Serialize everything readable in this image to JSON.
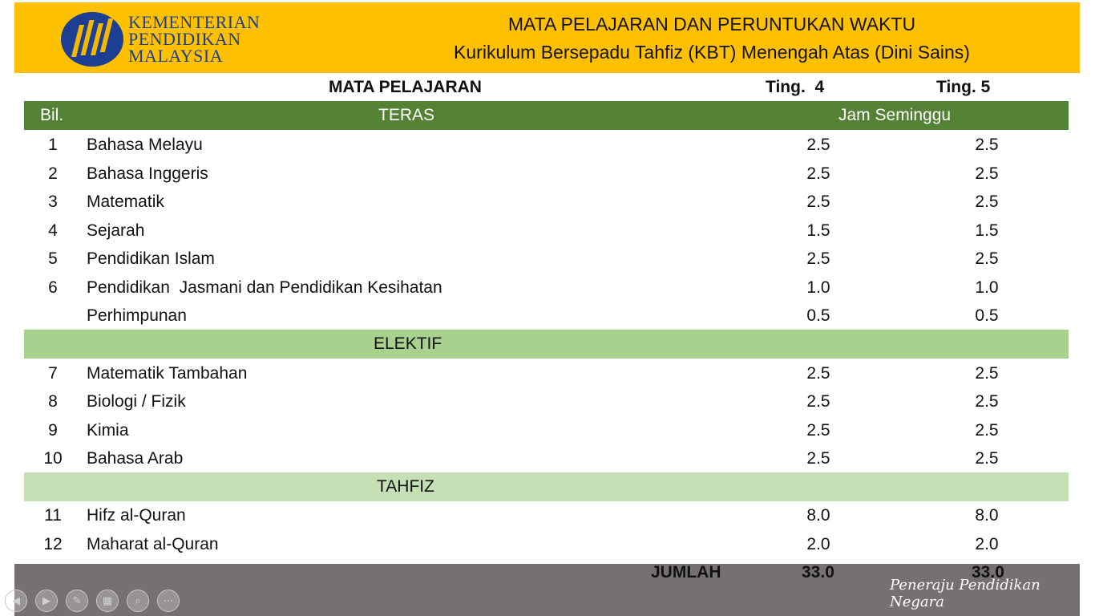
{
  "header": {
    "logo": {
      "line1": "KEMENTERIAN",
      "line2": "PENDIDIKAN",
      "line3": "MALAYSIA"
    },
    "title": "MATA PELAJARAN DAN PERUNTUKAN WAKTU",
    "subtitle": "Kurikulum Bersepadu Tahfiz (KBT) Menengah Atas (Dini Sains)"
  },
  "table": {
    "col_subject": "MATA PELAJARAN",
    "col_t4": "Ting.  4",
    "col_t5": "Ting. 5",
    "bil_label": "Bil.",
    "jam_label": "Jam Seminggu",
    "sections": {
      "teras": "TERAS",
      "elektif": "ELEKTIF",
      "tahfiz": "TAHFIZ"
    },
    "teras_rows": [
      {
        "bil": "1",
        "subject": "Bahasa Melayu",
        "t4": "2.5",
        "t5": "2.5"
      },
      {
        "bil": "2",
        "subject": "Bahasa Inggeris",
        "t4": "2.5",
        "t5": "2.5"
      },
      {
        "bil": "3",
        "subject": "Matematik",
        "t4": "2.5",
        "t5": "2.5"
      },
      {
        "bil": "4",
        "subject": "Sejarah",
        "t4": "1.5",
        "t5": "1.5"
      },
      {
        "bil": "5",
        "subject": "Pendidikan Islam",
        "t4": "2.5",
        "t5": "2.5"
      },
      {
        "bil": "6",
        "subject": "Pendidikan  Jasmani dan Pendidikan Kesihatan",
        "t4": "1.0",
        "t5": "1.0"
      },
      {
        "bil": "",
        "subject": "Perhimpunan",
        "t4": "0.5",
        "t5": "0.5"
      }
    ],
    "elektif_rows": [
      {
        "bil": "7",
        "subject": "Matematik Tambahan",
        "t4": "2.5",
        "t5": "2.5"
      },
      {
        "bil": "8",
        "subject": "Biologi / Fizik",
        "t4": "2.5",
        "t5": "2.5"
      },
      {
        "bil": "9",
        "subject": "Kimia",
        "t4": "2.5",
        "t5": "2.5"
      },
      {
        "bil": "10",
        "subject": "Bahasa Arab",
        "t4": "2.5",
        "t5": "2.5"
      }
    ],
    "tahfiz_rows": [
      {
        "bil": "11",
        "subject": "Hifz al-Quran",
        "t4": "8.0",
        "t5": "8.0"
      },
      {
        "bil": "12",
        "subject": "Maharat al-Quran",
        "t4": "2.0",
        "t5": "2.0"
      }
    ],
    "total": {
      "label": "JUMLAH",
      "t4": "33.0",
      "t5": "33.0"
    }
  },
  "footer": {
    "slogan": "Peneraju Pendidikan Negara"
  },
  "controls": [
    {
      "name": "previous-slide-icon",
      "glyph": "◀"
    },
    {
      "name": "next-slide-icon",
      "glyph": "▶"
    },
    {
      "name": "pen-icon",
      "glyph": "✎"
    },
    {
      "name": "slides-grid-icon",
      "glyph": "▦"
    },
    {
      "name": "zoom-icon",
      "glyph": "⌕"
    },
    {
      "name": "more-options-icon",
      "glyph": "⋯"
    }
  ],
  "colors": {
    "header": "#ffc000",
    "teras": "#548235",
    "elektif": "#a9d18e",
    "tahfiz": "#c5e0b4",
    "footer": "#767171"
  }
}
